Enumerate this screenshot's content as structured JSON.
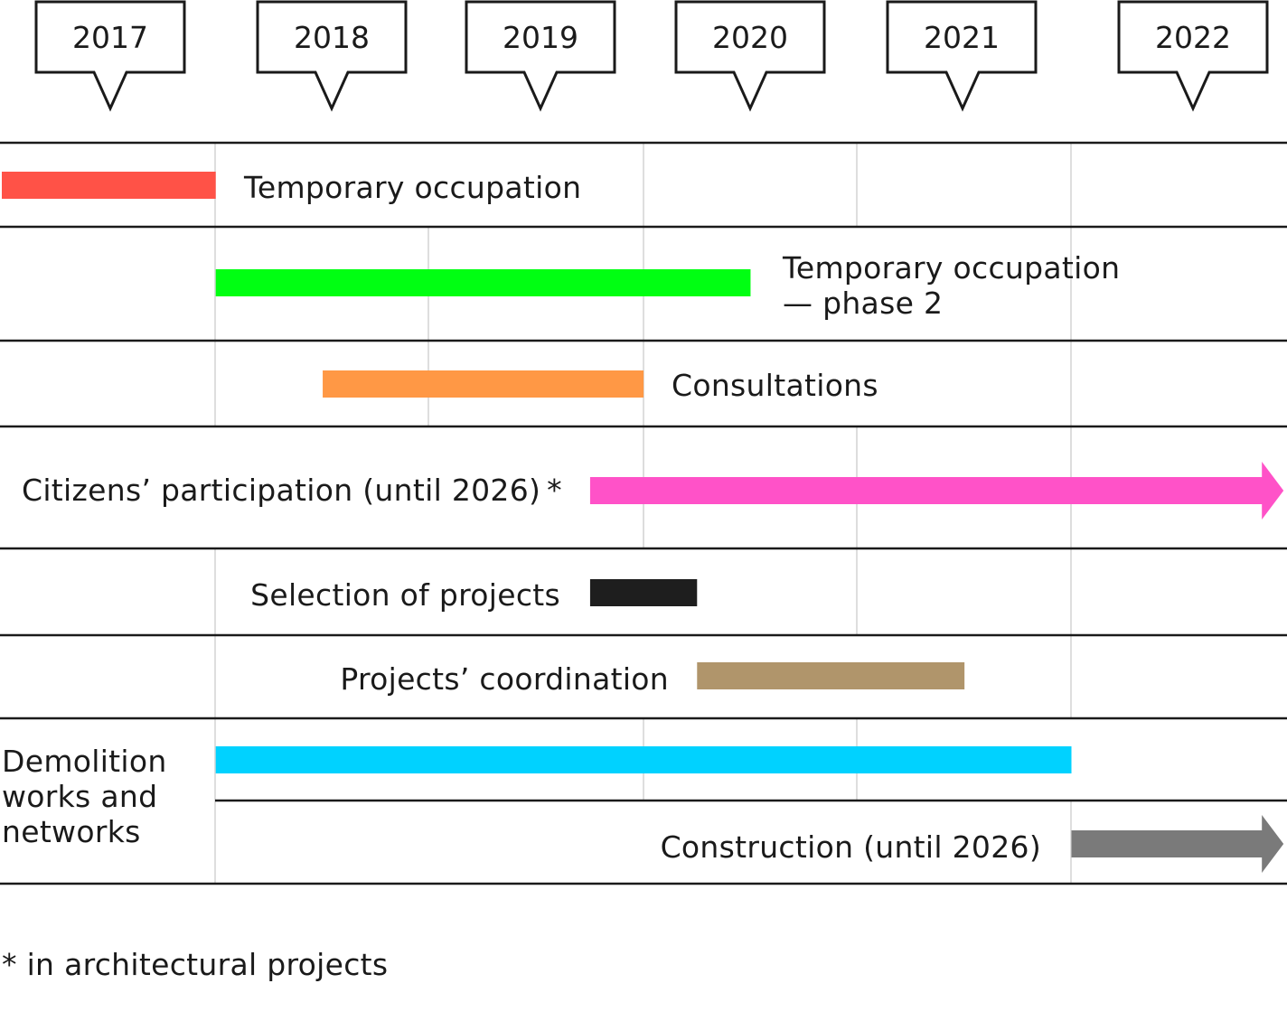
{
  "years": [
    "2017",
    "2018",
    "2019",
    "2020",
    "2021",
    "2022"
  ],
  "rows": [
    {
      "label": [
        "Temporary occupation"
      ],
      "color": "#ff5247",
      "start": 2017.0,
      "end": 2018.0,
      "arrow": false
    },
    {
      "label": [
        "Temporary occupation",
        "— phase 2"
      ],
      "color": "#00ff12",
      "start": 2018.0,
      "end": 2020.5,
      "arrow": false
    },
    {
      "label": [
        "Consultations"
      ],
      "color": "#ff9845",
      "start": 2018.5,
      "end": 2020.0,
      "arrow": false
    },
    {
      "label": [
        "Citizens’ participation (until 2026) *"
      ],
      "color": "#ff52c8",
      "start": 2019.75,
      "end": 2023.0,
      "arrow": true
    },
    {
      "label": [
        "Selection of projects"
      ],
      "color": "#1e1e1e",
      "start": 2019.75,
      "end": 2020.25,
      "arrow": false
    },
    {
      "label": [
        "Projects’ coordination"
      ],
      "color": "#b0956b",
      "start": 2020.25,
      "end": 2021.5,
      "arrow": false
    },
    {
      "label": [
        "Demolition",
        "works and",
        "networks"
      ],
      "color": "#00d2ff",
      "start": 2018.0,
      "end": 2022.0,
      "arrow": false
    },
    {
      "label": [
        "Construction (until 2026)"
      ],
      "color": "#7a7a7a",
      "start": 2022.0,
      "end": 2023.0,
      "arrow": true
    }
  ],
  "footnote": "* in architectural projects"
}
